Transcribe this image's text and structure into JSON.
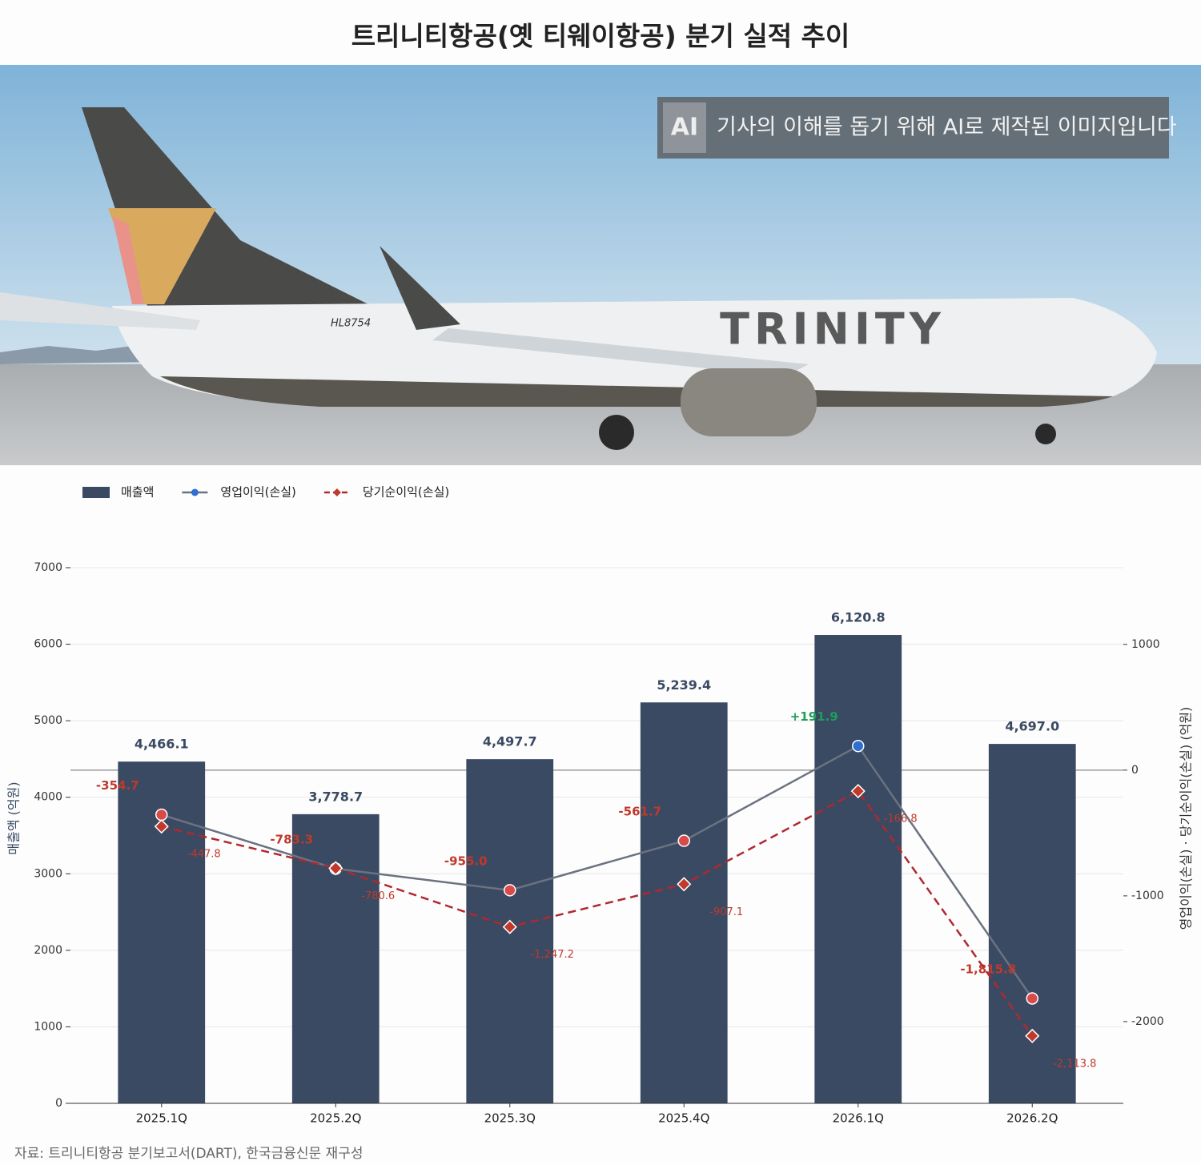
{
  "chart_data": {
    "type": "bar_line",
    "title": "트리니티항공(옛 티웨이항공) 분기 실적 추이",
    "source": "자료: 트리니티항공 분기보고서(DART), 한국금융신문 재구성",
    "y_label": "매출액 (억원)",
    "y2_label": "영업이익(손실) · 당기순이익(손실) (억원)",
    "categories": [
      "2025.1Q",
      "2025.2Q",
      "2025.3Q",
      "2025.4Q",
      "2026.1Q",
      "2026.2Q"
    ],
    "series": [
      {
        "name": "매출액",
        "type": "bar",
        "color": "#3a4a63",
        "values": [
          4466.1,
          3778.7,
          4497.7,
          5239.4,
          6120.8,
          4697.0
        ],
        "value_labels": [
          "4,466.1",
          "3,778.7",
          "4,497.7",
          "5,239.4",
          "6,120.8",
          "4,697.0"
        ]
      },
      {
        "name": "영업이익(손실)",
        "type": "line",
        "axis": "y2",
        "color": "#6b7280",
        "marker": "circle",
        "marker_color": "#d94a4a",
        "positive_marker_color": "#2f6fd1",
        "label_color": "#c0392b",
        "positive_label_color": "#1e9e5a",
        "values": [
          -354.7,
          -783.3,
          -955.0,
          -561.7,
          191.9,
          -1815.8
        ],
        "value_labels": [
          "-354.7",
          "-783.3",
          "-955.0",
          "-561.7",
          "+191.9",
          "-1,815.8"
        ]
      },
      {
        "name": "당기순이익(손실)",
        "type": "line",
        "axis": "y2",
        "color": "#b0282f",
        "dashed": true,
        "marker": "diamond",
        "marker_color": "#c0392b",
        "label_color": "#c0392b",
        "values": [
          -447.8,
          -780.6,
          -1247.2,
          -907.1,
          -166.8,
          -2113.8
        ],
        "value_labels": [
          "-447.8",
          "-780.6",
          "-1,247.2",
          "-907.1",
          "-166.8",
          "-2,113.8"
        ]
      }
    ],
    "ylim": [
      0,
      7000
    ],
    "yticks": [
      0,
      1000,
      2000,
      3000,
      4000,
      5000,
      6000,
      7000
    ],
    "y2lim": [
      -2650,
      1610
    ],
    "y2ticks": [
      -2000,
      -1000,
      0,
      1000
    ],
    "grid": true,
    "legend": "top-left"
  },
  "image": {
    "notice": "기사의 이해를 돕기 위해 AI로 제작된 이미지입니다",
    "livery": "TRINITY",
    "registration": "HL8754"
  }
}
